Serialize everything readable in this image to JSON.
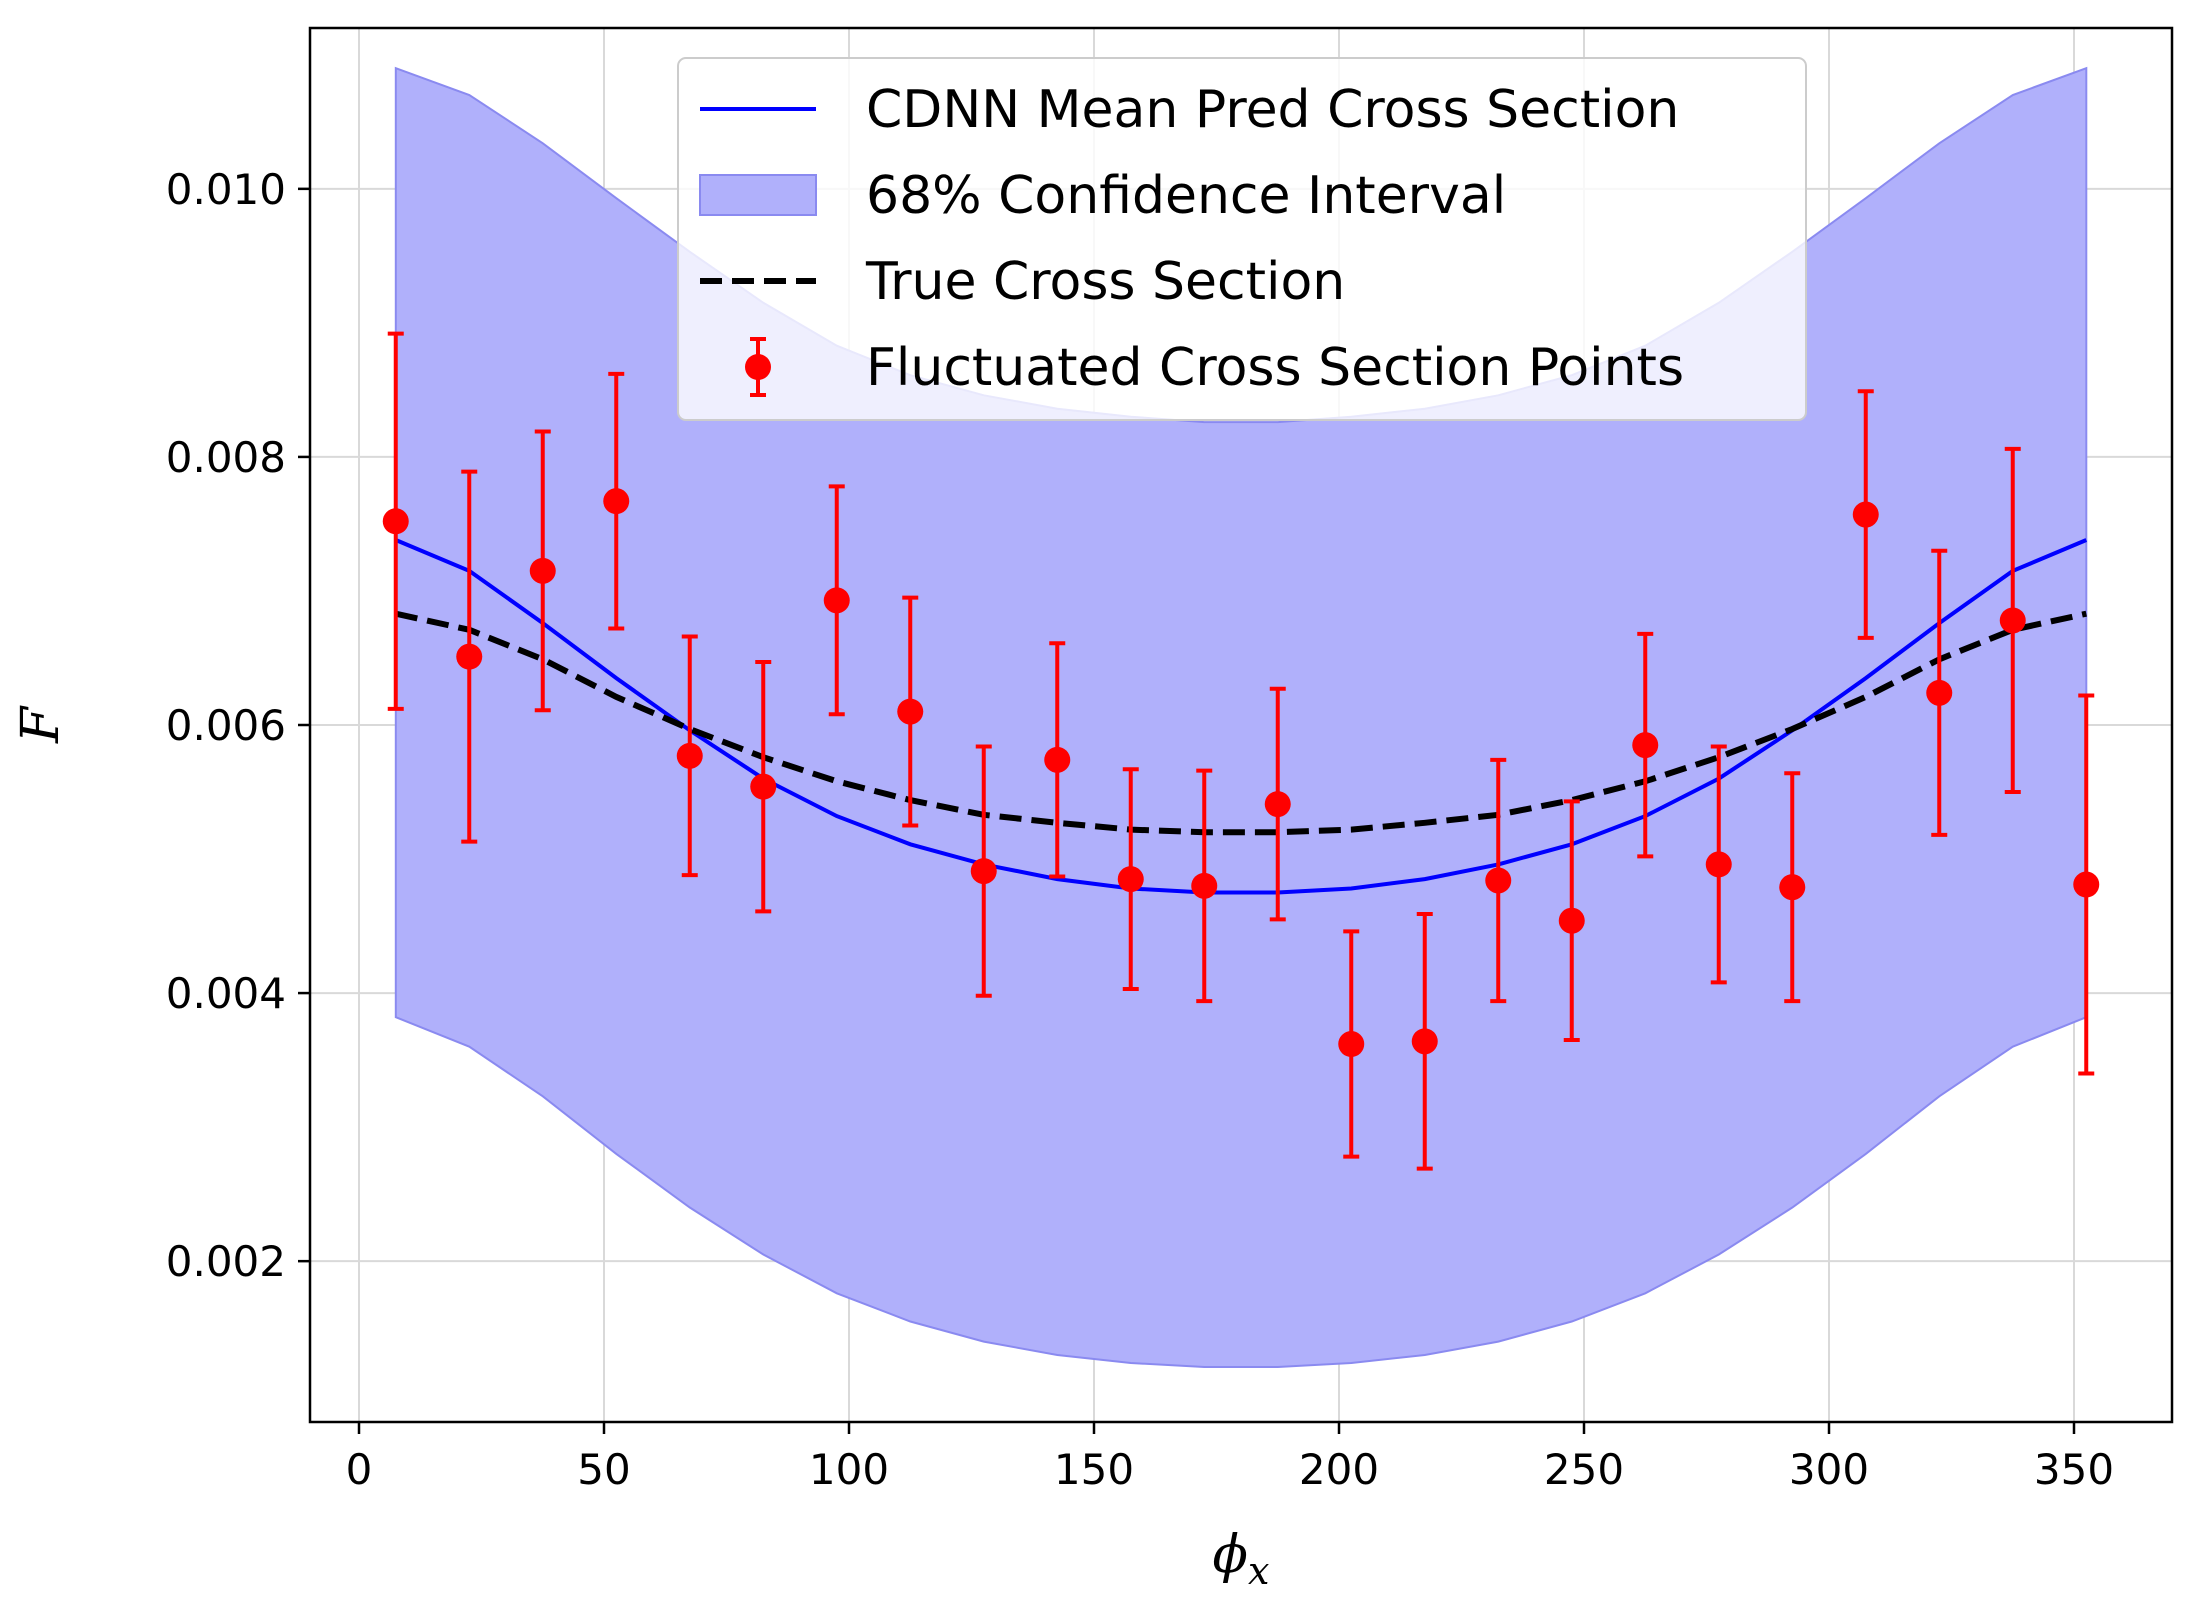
{
  "chart_data": {
    "type": "line",
    "title": "",
    "xlabel": "ϕ",
    "xlabel_sub": "x",
    "ylabel": "F",
    "xlim": [
      -10,
      370
    ],
    "ylim": [
      0.0008,
      0.0112
    ],
    "xticks": [
      0,
      50,
      100,
      150,
      200,
      250,
      300,
      350
    ],
    "xtick_labels": [
      "0",
      "50",
      "100",
      "150",
      "200",
      "250",
      "300",
      "350"
    ],
    "yticks": [
      0.002,
      0.004,
      0.006,
      0.008,
      0.01
    ],
    "ytick_labels": [
      "0.002",
      "0.004",
      "0.006",
      "0.008",
      "0.010"
    ],
    "grid": true,
    "legend_position": "top-center",
    "legend": [
      "CDNN Mean Pred Cross Section",
      "68% Confidence Interval",
      "True Cross Section",
      "Fluctuated Cross Section Points"
    ],
    "colors": {
      "mean": "#0000ff",
      "band": "#b0b0fb",
      "band_edge": "#8a8af0",
      "true": "#000000",
      "points": "#ff0000",
      "grid": "#d9d9d9"
    },
    "x": [
      7.5,
      22.5,
      37.5,
      52.5,
      67.5,
      82.5,
      97.5,
      112.5,
      127.5,
      142.5,
      157.5,
      172.5,
      187.5,
      202.5,
      217.5,
      232.5,
      247.5,
      262.5,
      277.5,
      292.5,
      307.5,
      322.5,
      337.5,
      352.5
    ],
    "series": [
      {
        "name": "CDNN Mean Pred Cross Section",
        "kind": "line",
        "values": [
          0.00738,
          0.00715,
          0.00676,
          0.00635,
          0.00596,
          0.0056,
          0.00532,
          0.00511,
          0.00496,
          0.00485,
          0.00478,
          0.00475,
          0.00475,
          0.00478,
          0.00485,
          0.00496,
          0.00511,
          0.00532,
          0.0056,
          0.00596,
          0.00635,
          0.00676,
          0.00715,
          0.00738
        ]
      },
      {
        "name": "68% Confidence Interval",
        "kind": "band",
        "lower": [
          0.00382,
          0.0036,
          0.00323,
          0.0028,
          0.0024,
          0.00205,
          0.00176,
          0.00155,
          0.0014,
          0.0013,
          0.00124,
          0.00121,
          0.00121,
          0.00124,
          0.0013,
          0.0014,
          0.00155,
          0.00176,
          0.00205,
          0.0024,
          0.0028,
          0.00323,
          0.0036,
          0.00382
        ],
        "upper": [
          0.0109,
          0.0107,
          0.01034,
          0.00993,
          0.00953,
          0.00915,
          0.00883,
          0.00861,
          0.00846,
          0.00836,
          0.0083,
          0.00826,
          0.00826,
          0.0083,
          0.00836,
          0.00846,
          0.00861,
          0.00883,
          0.00915,
          0.00953,
          0.00993,
          0.01034,
          0.0107,
          0.0109
        ]
      },
      {
        "name": "True Cross Section",
        "kind": "dashed-line",
        "values": [
          0.00683,
          0.00671,
          0.00649,
          0.00621,
          0.00597,
          0.00576,
          0.00558,
          0.00544,
          0.00533,
          0.00527,
          0.00522,
          0.0052,
          0.0052,
          0.00522,
          0.00527,
          0.00533,
          0.00544,
          0.00558,
          0.00576,
          0.00597,
          0.00621,
          0.00649,
          0.00671,
          0.00683
        ]
      },
      {
        "name": "Fluctuated Cross Section Points",
        "kind": "errorbar",
        "values": [
          0.00752,
          0.00651,
          0.00715,
          0.00767,
          0.00577,
          0.00554,
          0.00693,
          0.0061,
          0.00491,
          0.00574,
          0.00485,
          0.0048,
          0.00541,
          0.00362,
          0.00364,
          0.00484,
          0.00454,
          0.00585,
          0.00496,
          0.00479,
          0.00757,
          0.00624,
          0.00678,
          0.00481
        ],
        "errors": [
          0.0014,
          0.00138,
          0.00104,
          0.00095,
          0.00089,
          0.00093,
          0.00085,
          0.00085,
          0.00093,
          0.00087,
          0.00082,
          0.00086,
          0.00086,
          0.00084,
          0.00095,
          0.0009,
          0.00089,
          0.00083,
          0.00088,
          0.00085,
          0.00092,
          0.00106,
          0.00128,
          0.00141
        ]
      }
    ]
  }
}
